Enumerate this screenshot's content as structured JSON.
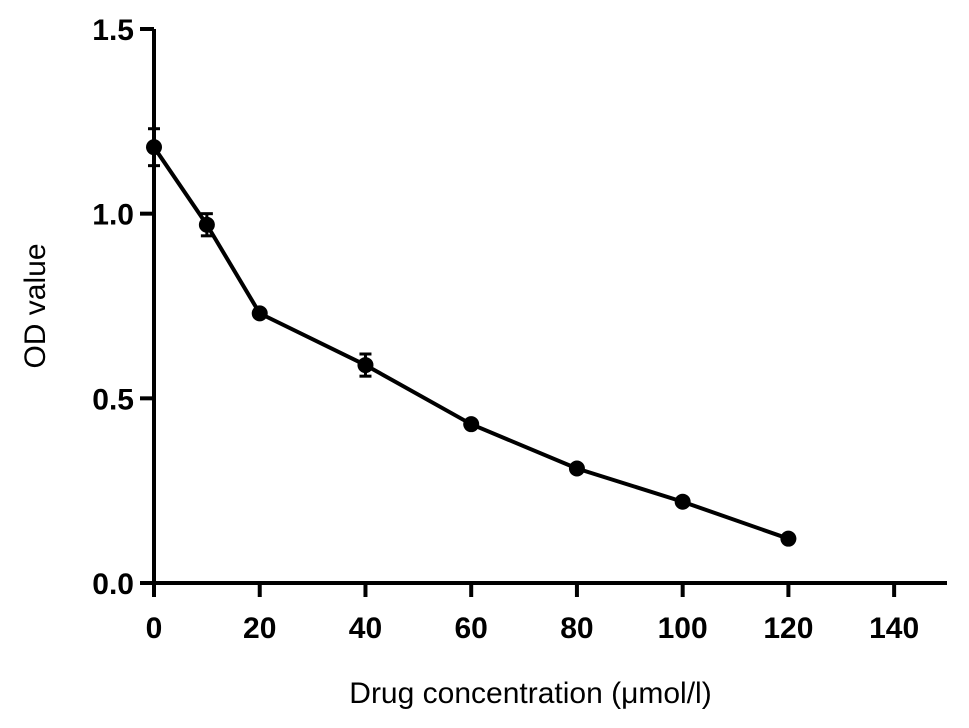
{
  "chart_data": {
    "type": "line",
    "title": "",
    "xlabel": "Drug concentration (μmol/l)",
    "ylabel": "OD value",
    "xlim": [
      0,
      150
    ],
    "ylim": [
      0,
      1.5
    ],
    "x_ticks": [
      0,
      20,
      40,
      60,
      80,
      100,
      120,
      140
    ],
    "y_ticks": [
      0.0,
      0.5,
      1.0,
      1.5
    ],
    "x_tick_labels": [
      "0",
      "20",
      "40",
      "60",
      "80",
      "100",
      "120",
      "140"
    ],
    "y_tick_labels": [
      "0.0",
      "0.5",
      "1.0",
      "1.5"
    ],
    "grid": false,
    "legend": "none",
    "series": [
      {
        "x": [
          0,
          10,
          20,
          40,
          60,
          80,
          100,
          120
        ],
        "y": [
          1.18,
          0.97,
          0.73,
          0.59,
          0.43,
          0.31,
          0.22,
          0.12
        ],
        "error": [
          0.05,
          0.03,
          0.01,
          0.03,
          0.01,
          0.01,
          0.01,
          0.01
        ],
        "color": "#000000",
        "marker": "circle"
      }
    ]
  }
}
